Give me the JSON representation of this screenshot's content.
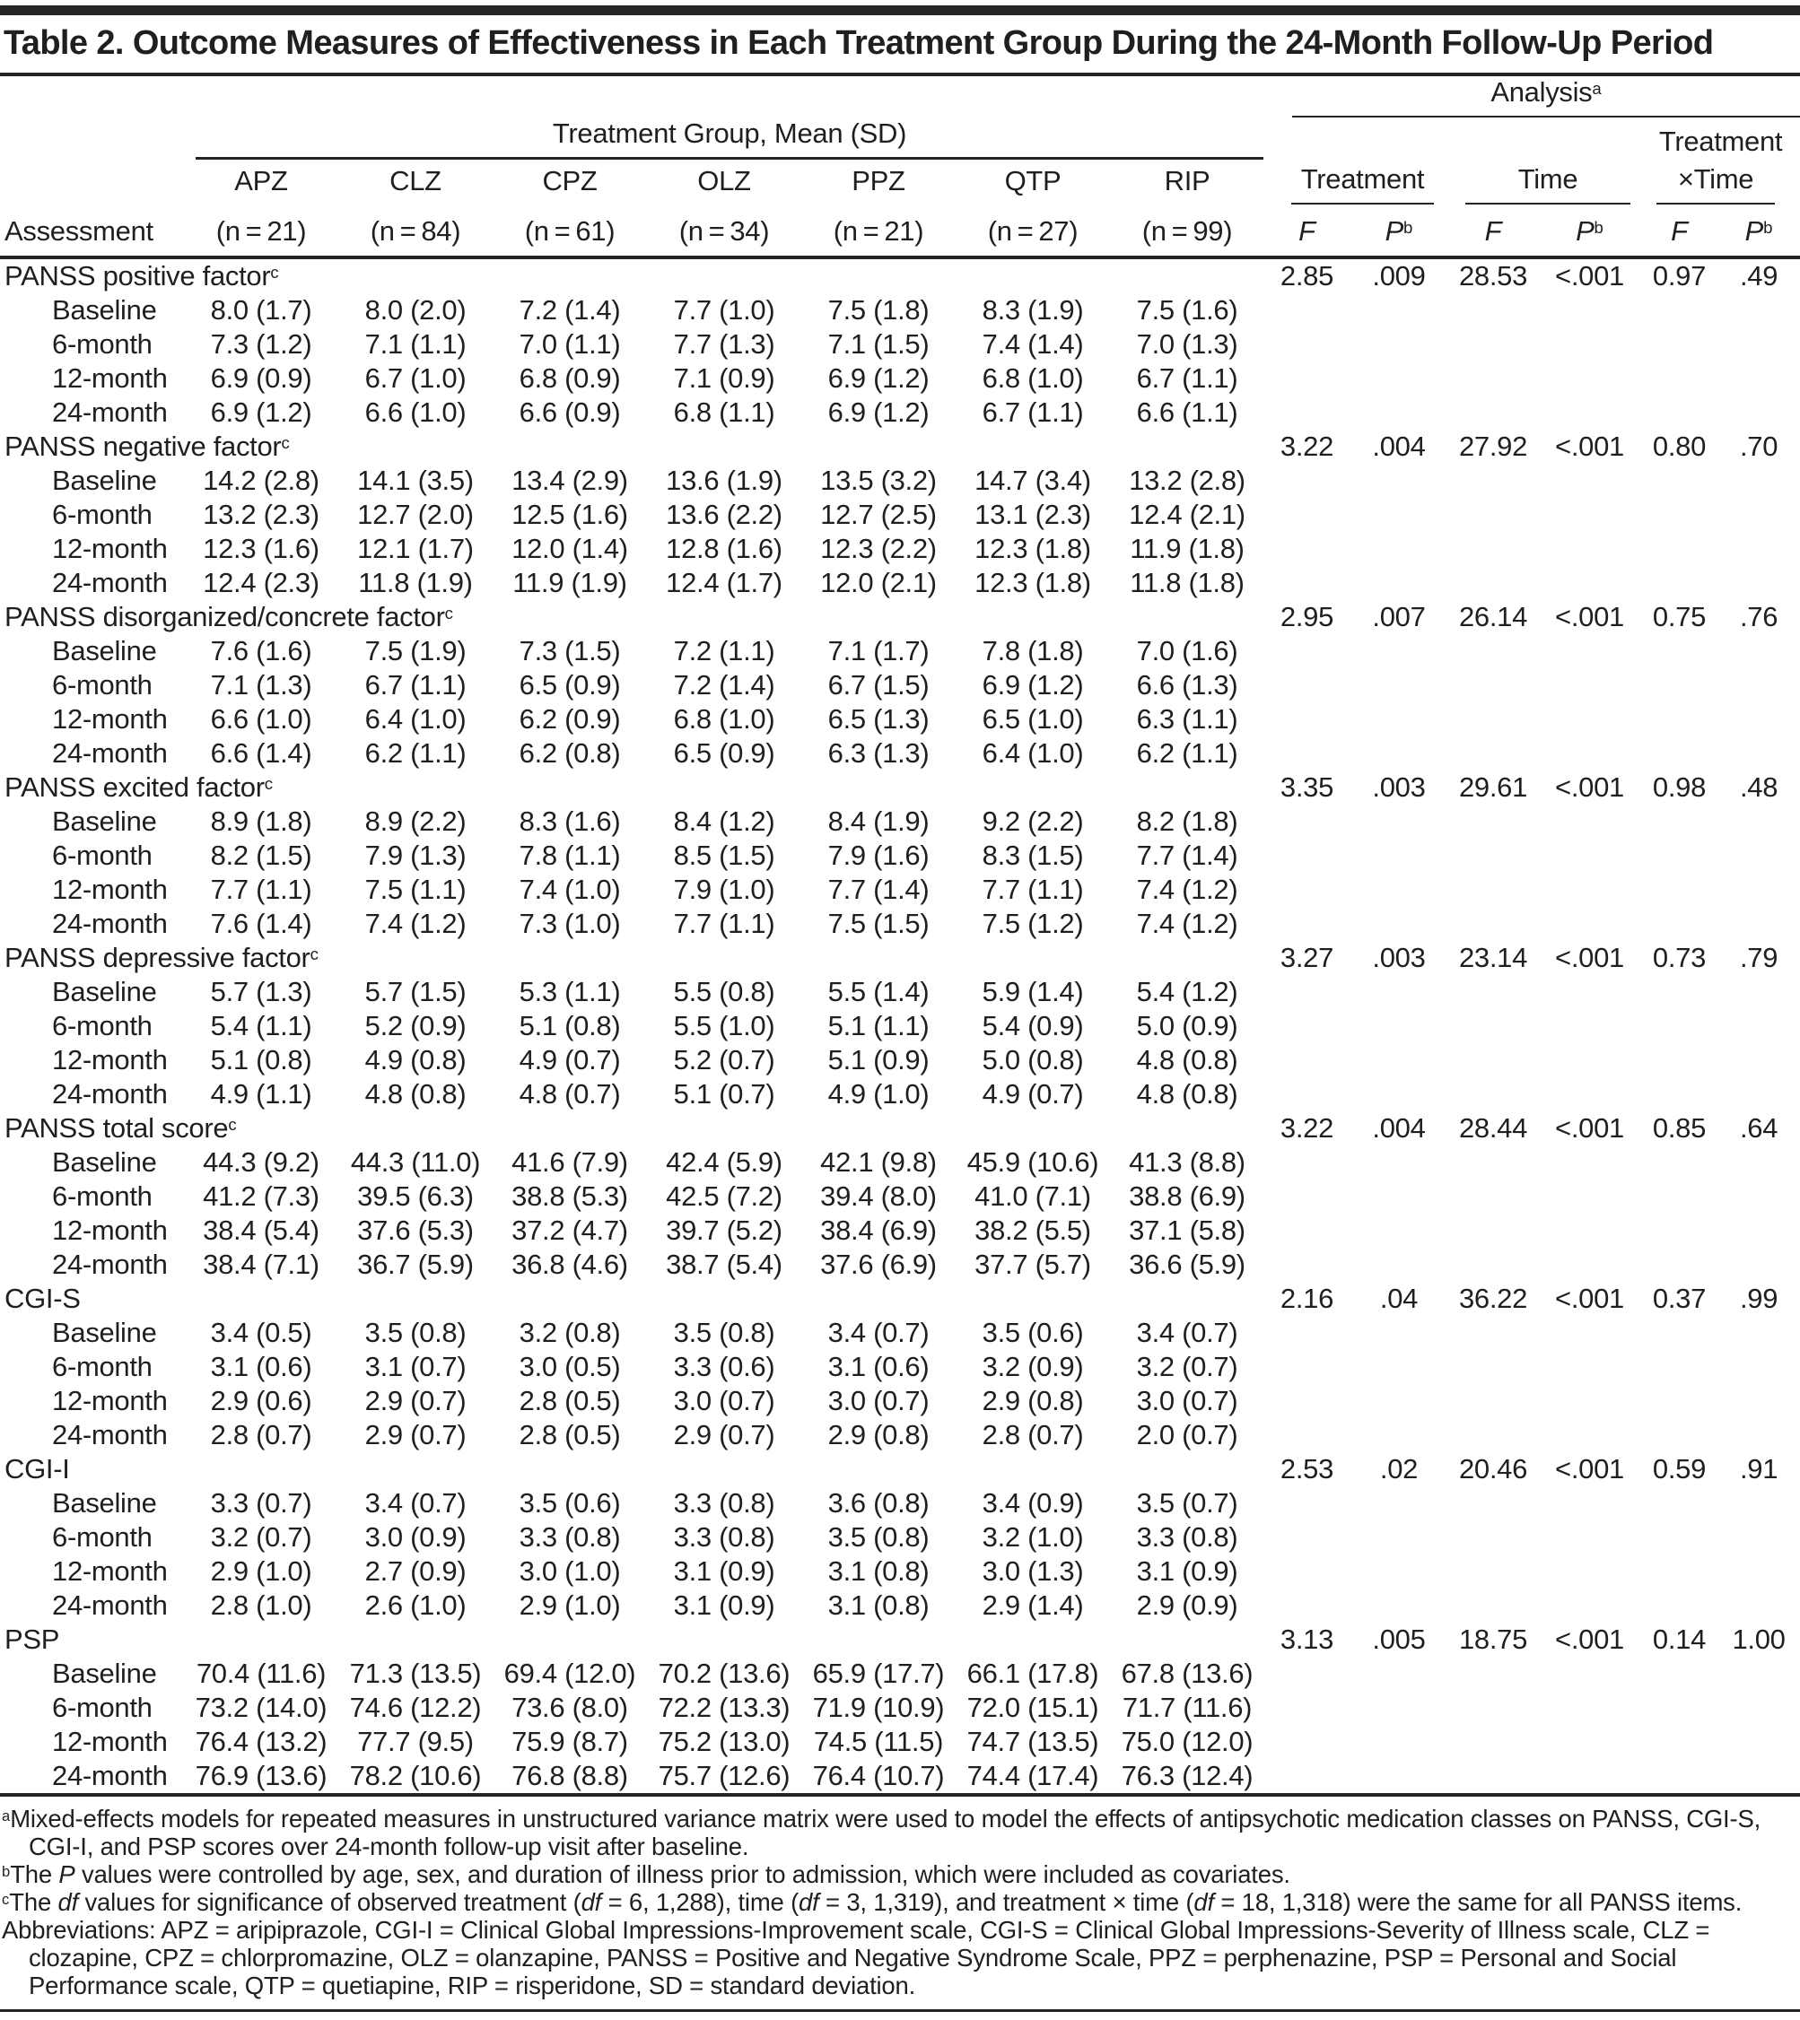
{
  "title": "Table 2. Outcome Measures of Effectiveness in Each Treatment Group During the 24-Month Follow-Up Period",
  "colors": {
    "background": "#ffffff",
    "text": "#1f1f1f",
    "rule": "#242424"
  },
  "header": {
    "analysis": {
      "label": "Analysis",
      "sup": "a"
    },
    "treatment_group": "Treatment Group, Mean (SD)",
    "assessment": "Assessment",
    "groups": {
      "treatment": "Treatment",
      "time": "Time",
      "tx_line1": "Treatment",
      "tx_line2": "×Time"
    },
    "stat_f": "F",
    "stat_p": "P",
    "stat_p_sup": "b",
    "n_label": "n",
    "drugs": [
      {
        "code": "APZ",
        "n": "21"
      },
      {
        "code": "CLZ",
        "n": "84"
      },
      {
        "code": "CPZ",
        "n": "61"
      },
      {
        "code": "OLZ",
        "n": "34"
      },
      {
        "code": "PPZ",
        "n": "21"
      },
      {
        "code": "QTP",
        "n": "27"
      },
      {
        "code": "RIP",
        "n": "99"
      }
    ]
  },
  "sections": [
    {
      "label": "PANSS positive factor",
      "sup": "c",
      "analysis": [
        "2.85",
        ".009",
        "28.53",
        "<.001",
        "0.97",
        ".49"
      ],
      "rows": [
        {
          "label": "Baseline",
          "values": [
            "8.0 (1.7)",
            "8.0 (2.0)",
            "7.2 (1.4)",
            "7.7 (1.0)",
            "7.5 (1.8)",
            "8.3 (1.9)",
            "7.5 (1.6)"
          ]
        },
        {
          "label": "6-month",
          "values": [
            "7.3 (1.2)",
            "7.1 (1.1)",
            "7.0 (1.1)",
            "7.7 (1.3)",
            "7.1 (1.5)",
            "7.4 (1.4)",
            "7.0 (1.3)"
          ]
        },
        {
          "label": "12-month",
          "values": [
            "6.9 (0.9)",
            "6.7 (1.0)",
            "6.8 (0.9)",
            "7.1 (0.9)",
            "6.9 (1.2)",
            "6.8 (1.0)",
            "6.7 (1.1)"
          ]
        },
        {
          "label": "24-month",
          "values": [
            "6.9 (1.2)",
            "6.6 (1.0)",
            "6.6 (0.9)",
            "6.8 (1.1)",
            "6.9 (1.2)",
            "6.7 (1.1)",
            "6.6 (1.1)"
          ]
        }
      ]
    },
    {
      "label": "PANSS negative factor",
      "sup": "c",
      "analysis": [
        "3.22",
        ".004",
        "27.92",
        "<.001",
        "0.80",
        ".70"
      ],
      "rows": [
        {
          "label": "Baseline",
          "values": [
            "14.2 (2.8)",
            "14.1 (3.5)",
            "13.4 (2.9)",
            "13.6 (1.9)",
            "13.5 (3.2)",
            "14.7 (3.4)",
            "13.2 (2.8)"
          ]
        },
        {
          "label": "6-month",
          "values": [
            "13.2 (2.3)",
            "12.7 (2.0)",
            "12.5 (1.6)",
            "13.6 (2.2)",
            "12.7 (2.5)",
            "13.1 (2.3)",
            "12.4 (2.1)"
          ]
        },
        {
          "label": "12-month",
          "values": [
            "12.3 (1.6)",
            "12.1 (1.7)",
            "12.0 (1.4)",
            "12.8 (1.6)",
            "12.3 (2.2)",
            "12.3 (1.8)",
            "11.9 (1.8)"
          ]
        },
        {
          "label": "24-month",
          "values": [
            "12.4 (2.3)",
            "11.8 (1.9)",
            "11.9 (1.9)",
            "12.4 (1.7)",
            "12.0 (2.1)",
            "12.3 (1.8)",
            "11.8 (1.8)"
          ]
        }
      ]
    },
    {
      "label": "PANSS disorganized/concrete factor",
      "sup": "c",
      "analysis": [
        "2.95",
        ".007",
        "26.14",
        "<.001",
        "0.75",
        ".76"
      ],
      "rows": [
        {
          "label": "Baseline",
          "values": [
            "7.6 (1.6)",
            "7.5 (1.9)",
            "7.3 (1.5)",
            "7.2 (1.1)",
            "7.1 (1.7)",
            "7.8 (1.8)",
            "7.0 (1.6)"
          ]
        },
        {
          "label": "6-month",
          "values": [
            "7.1 (1.3)",
            "6.7 (1.1)",
            "6.5 (0.9)",
            "7.2 (1.4)",
            "6.7 (1.5)",
            "6.9 (1.2)",
            "6.6 (1.3)"
          ]
        },
        {
          "label": "12-month",
          "values": [
            "6.6 (1.0)",
            "6.4 (1.0)",
            "6.2 (0.9)",
            "6.8 (1.0)",
            "6.5 (1.3)",
            "6.5 (1.0)",
            "6.3 (1.1)"
          ]
        },
        {
          "label": "24-month",
          "values": [
            "6.6 (1.4)",
            "6.2 (1.1)",
            "6.2 (0.8)",
            "6.5 (0.9)",
            "6.3 (1.3)",
            "6.4 (1.0)",
            "6.2 (1.1)"
          ]
        }
      ]
    },
    {
      "label": "PANSS excited factor",
      "sup": "c",
      "analysis": [
        "3.35",
        ".003",
        "29.61",
        "<.001",
        "0.98",
        ".48"
      ],
      "rows": [
        {
          "label": "Baseline",
          "values": [
            "8.9 (1.8)",
            "8.9 (2.2)",
            "8.3 (1.6)",
            "8.4 (1.2)",
            "8.4 (1.9)",
            "9.2 (2.2)",
            "8.2 (1.8)"
          ]
        },
        {
          "label": "6-month",
          "values": [
            "8.2 (1.5)",
            "7.9 (1.3)",
            "7.8 (1.1)",
            "8.5 (1.5)",
            "7.9 (1.6)",
            "8.3 (1.5)",
            "7.7 (1.4)"
          ]
        },
        {
          "label": "12-month",
          "values": [
            "7.7 (1.1)",
            "7.5 (1.1)",
            "7.4 (1.0)",
            "7.9 (1.0)",
            "7.7 (1.4)",
            "7.7 (1.1)",
            "7.4 (1.2)"
          ]
        },
        {
          "label": "24-month",
          "values": [
            "7.6 (1.4)",
            "7.4 (1.2)",
            "7.3 (1.0)",
            "7.7 (1.1)",
            "7.5 (1.5)",
            "7.5 (1.2)",
            "7.4 (1.2)"
          ]
        }
      ]
    },
    {
      "label": "PANSS depressive factor",
      "sup": "c",
      "analysis": [
        "3.27",
        ".003",
        "23.14",
        "<.001",
        "0.73",
        ".79"
      ],
      "rows": [
        {
          "label": "Baseline",
          "values": [
            "5.7 (1.3)",
            "5.7 (1.5)",
            "5.3 (1.1)",
            "5.5 (0.8)",
            "5.5 (1.4)",
            "5.9 (1.4)",
            "5.4 (1.2)"
          ]
        },
        {
          "label": "6-month",
          "values": [
            "5.4 (1.1)",
            "5.2 (0.9)",
            "5.1 (0.8)",
            "5.5 (1.0)",
            "5.1 (1.1)",
            "5.4 (0.9)",
            "5.0 (0.9)"
          ]
        },
        {
          "label": "12-month",
          "values": [
            "5.1 (0.8)",
            "4.9 (0.8)",
            "4.9 (0.7)",
            "5.2 (0.7)",
            "5.1 (0.9)",
            "5.0 (0.8)",
            "4.8 (0.8)"
          ]
        },
        {
          "label": "24-month",
          "values": [
            "4.9 (1.1)",
            "4.8 (0.8)",
            "4.8 (0.7)",
            "5.1 (0.7)",
            "4.9 (1.0)",
            "4.9 (0.7)",
            "4.8 (0.8)"
          ]
        }
      ]
    },
    {
      "label": "PANSS total score",
      "sup": "c",
      "analysis": [
        "3.22",
        ".004",
        "28.44",
        "<.001",
        "0.85",
        ".64"
      ],
      "rows": [
        {
          "label": "Baseline",
          "values": [
            "44.3 (9.2)",
            "44.3 (11.0)",
            "41.6 (7.9)",
            "42.4 (5.9)",
            "42.1 (9.8)",
            "45.9 (10.6)",
            "41.3 (8.8)"
          ]
        },
        {
          "label": "6-month",
          "values": [
            "41.2 (7.3)",
            "39.5 (6.3)",
            "38.8 (5.3)",
            "42.5 (7.2)",
            "39.4 (8.0)",
            "41.0 (7.1)",
            "38.8 (6.9)"
          ]
        },
        {
          "label": "12-month",
          "values": [
            "38.4 (5.4)",
            "37.6 (5.3)",
            "37.2 (4.7)",
            "39.7 (5.2)",
            "38.4 (6.9)",
            "38.2 (5.5)",
            "37.1 (5.8)"
          ]
        },
        {
          "label": "24-month",
          "values": [
            "38.4 (7.1)",
            "36.7 (5.9)",
            "36.8 (4.6)",
            "38.7 (5.4)",
            "37.6 (6.9)",
            "37.7 (5.7)",
            "36.6 (5.9)"
          ]
        }
      ]
    },
    {
      "label": "CGI-S",
      "sup": "",
      "analysis": [
        "2.16",
        ".04",
        "36.22",
        "<.001",
        "0.37",
        ".99"
      ],
      "rows": [
        {
          "label": "Baseline",
          "values": [
            "3.4 (0.5)",
            "3.5 (0.8)",
            "3.2 (0.8)",
            "3.5 (0.8)",
            "3.4 (0.7)",
            "3.5 (0.6)",
            "3.4 (0.7)"
          ]
        },
        {
          "label": "6-month",
          "values": [
            "3.1 (0.6)",
            "3.1 (0.7)",
            "3.0 (0.5)",
            "3.3 (0.6)",
            "3.1 (0.6)",
            "3.2 (0.9)",
            "3.2 (0.7)"
          ]
        },
        {
          "label": "12-month",
          "values": [
            "2.9 (0.6)",
            "2.9 (0.7)",
            "2.8 (0.5)",
            "3.0 (0.7)",
            "3.0 (0.7)",
            "2.9 (0.8)",
            "3.0 (0.7)"
          ]
        },
        {
          "label": "24-month",
          "values": [
            "2.8 (0.7)",
            "2.9 (0.7)",
            "2.8 (0.5)",
            "2.9 (0.7)",
            "2.9 (0.8)",
            "2.8 (0.7)",
            "2.0 (0.7)"
          ]
        }
      ]
    },
    {
      "label": "CGI-I",
      "sup": "",
      "analysis": [
        "2.53",
        ".02",
        "20.46",
        "<.001",
        "0.59",
        ".91"
      ],
      "rows": [
        {
          "label": "Baseline",
          "values": [
            "3.3 (0.7)",
            "3.4 (0.7)",
            "3.5 (0.6)",
            "3.3 (0.8)",
            "3.6 (0.8)",
            "3.4 (0.9)",
            "3.5 (0.7)"
          ]
        },
        {
          "label": "6-month",
          "values": [
            "3.2 (0.7)",
            "3.0 (0.9)",
            "3.3 (0.8)",
            "3.3 (0.8)",
            "3.5 (0.8)",
            "3.2 (1.0)",
            "3.3 (0.8)"
          ]
        },
        {
          "label": "12-month",
          "values": [
            "2.9 (1.0)",
            "2.7 (0.9)",
            "3.0 (1.0)",
            "3.1 (0.9)",
            "3.1 (0.8)",
            "3.0 (1.3)",
            "3.1 (0.9)"
          ]
        },
        {
          "label": "24-month",
          "values": [
            "2.8 (1.0)",
            "2.6 (1.0)",
            "2.9 (1.0)",
            "3.1 (0.9)",
            "3.1 (0.8)",
            "2.9 (1.4)",
            "2.9 (0.9)"
          ]
        }
      ]
    },
    {
      "label": "PSP",
      "sup": "",
      "analysis": [
        "3.13",
        ".005",
        "18.75",
        "<.001",
        "0.14",
        "1.00"
      ],
      "rows": [
        {
          "label": "Baseline",
          "values": [
            "70.4 (11.6)",
            "71.3 (13.5)",
            "69.4 (12.0)",
            "70.2 (13.6)",
            "65.9 (17.7)",
            "66.1 (17.8)",
            "67.8 (13.6)"
          ]
        },
        {
          "label": "6-month",
          "values": [
            "73.2 (14.0)",
            "74.6 (12.2)",
            "73.6 (8.0)",
            "72.2 (13.3)",
            "71.9 (10.9)",
            "72.0 (15.1)",
            "71.7 (11.6)"
          ]
        },
        {
          "label": "12-month",
          "values": [
            "76.4 (13.2)",
            "77.7 (9.5)",
            "75.9 (8.7)",
            "75.2 (13.0)",
            "74.5 (11.5)",
            "74.7 (13.5)",
            "75.0 (12.0)"
          ]
        },
        {
          "label": "24-month",
          "values": [
            "76.9 (13.6)",
            "78.2 (10.6)",
            "76.8 (8.8)",
            "75.7 (12.6)",
            "76.4 (10.7)",
            "74.4 (17.4)",
            "76.3 (12.4)"
          ]
        }
      ]
    }
  ],
  "footnotes": [
    {
      "sup": "a",
      "parts": [
        "Mixed-effects models for repeated measures in unstructured variance matrix were used to model the effects of antipsychotic medication classes on PANSS, CGI-S, CGI-I, and PSP scores over 24-month follow-up visit after baseline."
      ]
    },
    {
      "sup": "b",
      "parts": [
        "The ",
        {
          "i": "P"
        },
        " values were controlled by age, sex, and duration of illness prior to admission, which were included as covariates."
      ]
    },
    {
      "sup": "c",
      "parts": [
        "The ",
        {
          "i": "df"
        },
        " values for significance of observed treatment (",
        {
          "i": "df"
        },
        " = 6, 1,288), time (",
        {
          "i": "df"
        },
        " = 3, 1,319), and treatment × time (",
        {
          "i": "df"
        },
        " = 18, 1,318) were the same for all PANSS items."
      ]
    },
    {
      "sup": "",
      "parts": [
        "Abbreviations: APZ = aripiprazole, CGI-I = Clinical Global Impressions-Improvement scale, CGI-S = Clinical Global Impressions-Severity of Illness scale, CLZ = clozapine, CPZ = chlorpromazine, OLZ = olanzapine, PANSS = Positive and Negative Syndrome Scale, PPZ = perphenazine, PSP = Personal and Social Performance scale, QTP = quetiapine, RIP = risperidone, SD = standard deviation."
      ]
    }
  ]
}
